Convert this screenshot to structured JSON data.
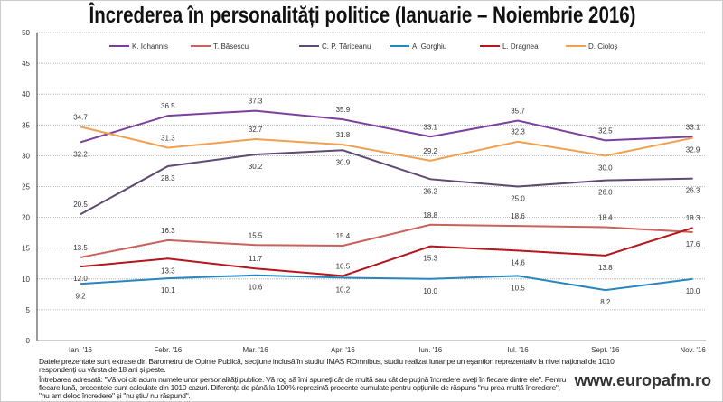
{
  "title": "Încrederea în personalități politice (Ianuarie – Noiembrie 2016)",
  "chart_data": {
    "type": "line",
    "title": "Încrederea în personalități politice (Ianuarie – Noiembrie 2016)",
    "categories": [
      "Ian. '16",
      "Febr. '16",
      "Mar. '16",
      "Apr. '16",
      "Iun. '16",
      "Iul. '16",
      "Sept. '16",
      "Nov. '16"
    ],
    "ylim": [
      0,
      50
    ],
    "yticks": [
      0,
      5,
      10,
      15,
      20,
      25,
      30,
      35,
      40,
      45,
      50
    ],
    "grid": true,
    "legend": "top",
    "series": [
      {
        "name": "K. Iohannis",
        "color": "#7b3f9e",
        "values": [
          32.2,
          36.5,
          37.3,
          35.9,
          33.1,
          35.7,
          32.5,
          33.1
        ]
      },
      {
        "name": "T. Băsescu",
        "color": "#c8625c",
        "values": [
          13.5,
          16.3,
          15.5,
          15.4,
          18.8,
          18.6,
          18.4,
          17.6
        ]
      },
      {
        "name": "C. P. Tăriceanu",
        "color": "#5e4a72",
        "values": [
          20.5,
          28.3,
          30.2,
          30.9,
          26.2,
          25.0,
          26.0,
          26.3
        ]
      },
      {
        "name": "A. Gorghiu",
        "color": "#2a84c0",
        "values": [
          9.2,
          10.1,
          10.6,
          10.2,
          10.0,
          10.5,
          8.2,
          10.0
        ]
      },
      {
        "name": "L. Dragnea",
        "color": "#b3161c",
        "values": [
          12.0,
          13.3,
          11.7,
          10.5,
          15.3,
          14.6,
          13.8,
          18.3
        ]
      },
      {
        "name": "D. Cioloș",
        "color": "#f0a050",
        "values": [
          34.7,
          31.3,
          32.7,
          31.8,
          29.2,
          32.3,
          30.0,
          32.9
        ]
      }
    ]
  },
  "notes": {
    "source": "Datele prezentate sunt extrase din Barometrul de Opinie Publică, secțiune inclusă în studiul IMAS ROmnibus, studiu realizat lunar pe un eșantion reprezentativ la nivel național de 1010 respondenți cu vârsta de 18 ani și peste.",
    "question": "Întrebarea adresată: \"Vă voi citi acum numele unor personalități publice. Vă rog să îmi spuneți cât de multă sau cât de puțină încredere aveți în fiecare dintre ele\". Pentru fiecare lună, procentele sunt calculate din 1010 cazuri. Diferența de până la 100% reprezintă procente cumulate pentru opțiunile de răspuns \"nu prea multă încredere\", \"nu am deloc încredere\" și \"nu știu/ nu răspund\"."
  },
  "site": "www.europafm.ro"
}
